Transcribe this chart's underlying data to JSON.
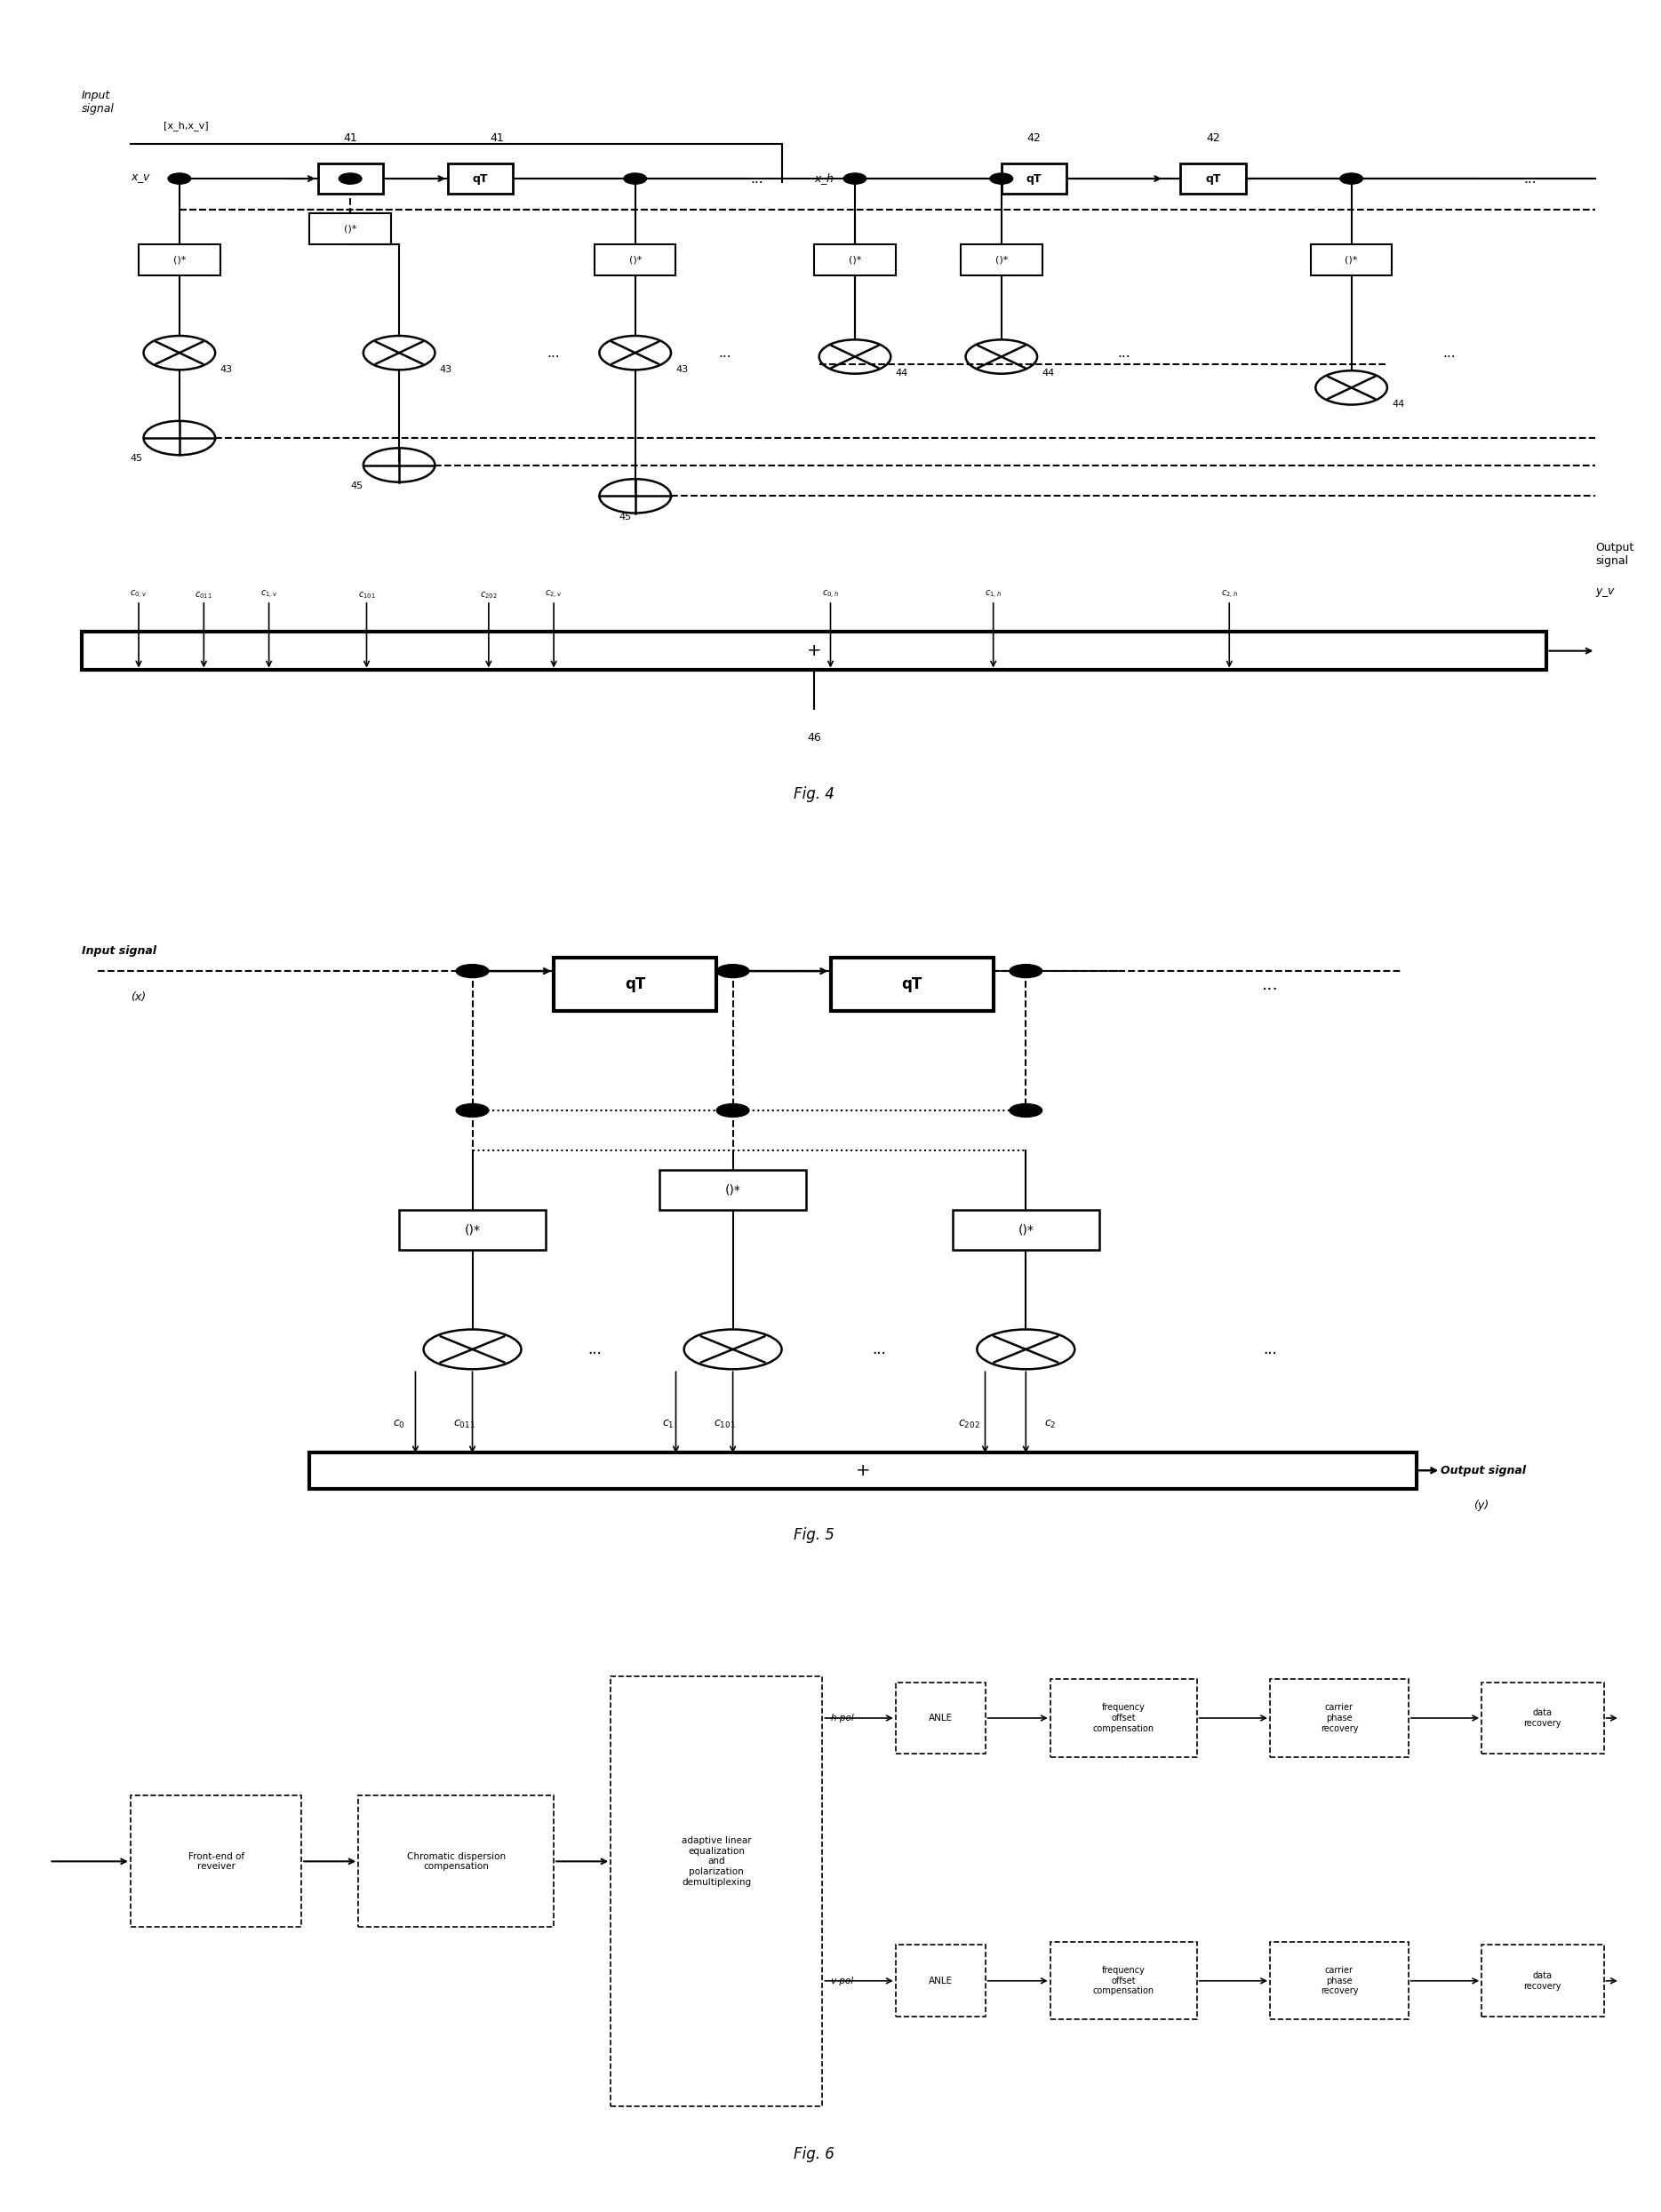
{
  "fig_width": 18.69,
  "fig_height": 24.9,
  "bg_color": "#ffffff",
  "fig4_caption": "Fig. 4",
  "fig5_caption": "Fig. 5",
  "fig6_caption": "Fig. 6"
}
